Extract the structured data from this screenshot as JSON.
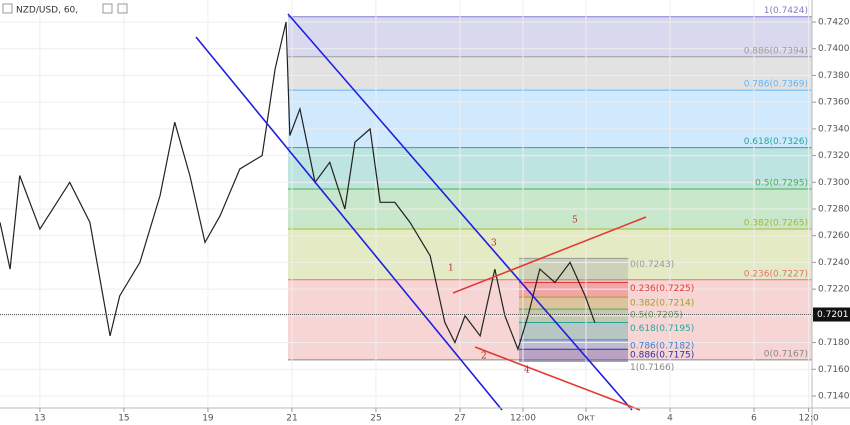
{
  "chart_data": {
    "type": "line",
    "title": "NZD/USD, 60,",
    "x": [
      -0.95,
      -0.71,
      -0.48,
      0,
      0.71,
      1.19,
      1.67,
      1.9,
      2.38,
      2.86,
      3.21,
      3.57,
      3.93,
      4.29,
      4.76,
      5.29,
      5.6,
      5.86,
      5.95,
      6.19,
      6.55,
      6.9,
      7.26,
      7.5,
      7.86,
      8.1,
      8.45,
      8.81,
      9.29,
      9.64,
      9.88,
      10.12,
      10.48,
      10.83,
      11.07,
      11.38,
      11.62,
      11.9,
      12.26,
      12.62,
      12.98,
      13.21
    ],
    "series": [
      {
        "name": "NZD/USD",
        "color": "#222222",
        "values": [
          0.727,
          0.7235,
          0.7305,
          0.7265,
          0.73,
          0.727,
          0.7185,
          0.7215,
          0.724,
          0.729,
          0.7345,
          0.7305,
          0.7255,
          0.7275,
          0.731,
          0.732,
          0.7385,
          0.742,
          0.7335,
          0.7355,
          0.73,
          0.7315,
          0.728,
          0.733,
          0.734,
          0.7285,
          0.7285,
          0.727,
          0.7245,
          0.7195,
          0.718,
          0.72,
          0.7185,
          0.7235,
          0.72,
          0.7175,
          0.72,
          0.7235,
          0.7225,
          0.724,
          0.7215,
          0.7195
        ]
      }
    ],
    "xlim": [
      -0.95,
      18.38
    ],
    "ylim": [
      0.7131,
      0.74365
    ],
    "xticks": [
      {
        "value": 0,
        "label": "13"
      },
      {
        "value": 2,
        "label": "15"
      },
      {
        "value": 4,
        "label": "19"
      },
      {
        "value": 6,
        "label": "21"
      },
      {
        "value": 8,
        "label": "25"
      },
      {
        "value": 10,
        "label": "27"
      },
      {
        "value": 11.5,
        "label": "12:00"
      },
      {
        "value": 13,
        "label": "Окт"
      },
      {
        "value": 15,
        "label": "4"
      },
      {
        "value": 17,
        "label": "6"
      },
      {
        "value": 18.3,
        "label": "12:0"
      }
    ],
    "yticks": [
      {
        "value": 0.714,
        "label": "0.7140"
      },
      {
        "value": 0.716,
        "label": "0.7160"
      },
      {
        "value": 0.718,
        "label": "0.7180"
      },
      {
        "value": 0.72,
        "label": "0.7200"
      },
      {
        "value": 0.722,
        "label": "0.7220"
      },
      {
        "value": 0.724,
        "label": "0.7240"
      },
      {
        "value": 0.726,
        "label": "0.7260"
      },
      {
        "value": 0.728,
        "label": "0.7280"
      },
      {
        "value": 0.73,
        "label": "0.7300"
      },
      {
        "value": 0.732,
        "label": "0.7320"
      },
      {
        "value": 0.734,
        "label": "0.7340"
      },
      {
        "value": 0.736,
        "label": "0.7360"
      },
      {
        "value": 0.738,
        "label": "0.7380"
      },
      {
        "value": 0.74,
        "label": "0.7400"
      },
      {
        "value": 0.742,
        "label": "0.7420"
      }
    ],
    "last_price": 0.7201,
    "fib_main": [
      {
        "value": 0.7424,
        "label": "1(0.7424)",
        "color": "#7e7ec8"
      },
      {
        "value": 0.7394,
        "label": "0.886(0.7394)",
        "color": "#9e9e9e"
      },
      {
        "value": 0.7369,
        "label": "0.786(0.7369)",
        "color": "#64b5f6"
      },
      {
        "value": 0.7326,
        "label": "0.618(0.7326)",
        "color": "#26a69a"
      },
      {
        "value": 0.7295,
        "label": "0.5(0.7295)",
        "color": "#4caf50"
      },
      {
        "value": 0.7265,
        "label": "0.382(0.7265)",
        "color": "#a5b83a"
      },
      {
        "value": 0.7227,
        "label": "0.236(0.7227)",
        "color": "#e57373"
      },
      {
        "value": 0.7167,
        "label": "0(0.7167)",
        "color": "#888888"
      }
    ],
    "fib_small": [
      {
        "value": 0.7243,
        "label": "0(0.7243)",
        "color": "#999999"
      },
      {
        "value": 0.7225,
        "label": "0.236(0.7225)",
        "color": "#e53935"
      },
      {
        "value": 0.7214,
        "label": "0.382(0.7214)",
        "color": "#a5a020"
      },
      {
        "value": 0.7205,
        "label": "0.5(0.7205)",
        "color": "#4caf50"
      },
      {
        "value": 0.7195,
        "label": "0.618(0.7195)",
        "color": "#26a69a"
      },
      {
        "value": 0.7182,
        "label": "0.786(0.7182)",
        "color": "#3f7fd0"
      },
      {
        "value": 0.7175,
        "label": "0.886(0.7175)",
        "color": "#3030a0"
      },
      {
        "value": 0.7166,
        "label": "1(0.7166)",
        "color": "#888888"
      }
    ],
    "wave_labels": [
      "1",
      "2",
      "3",
      "4",
      "5"
    ]
  }
}
